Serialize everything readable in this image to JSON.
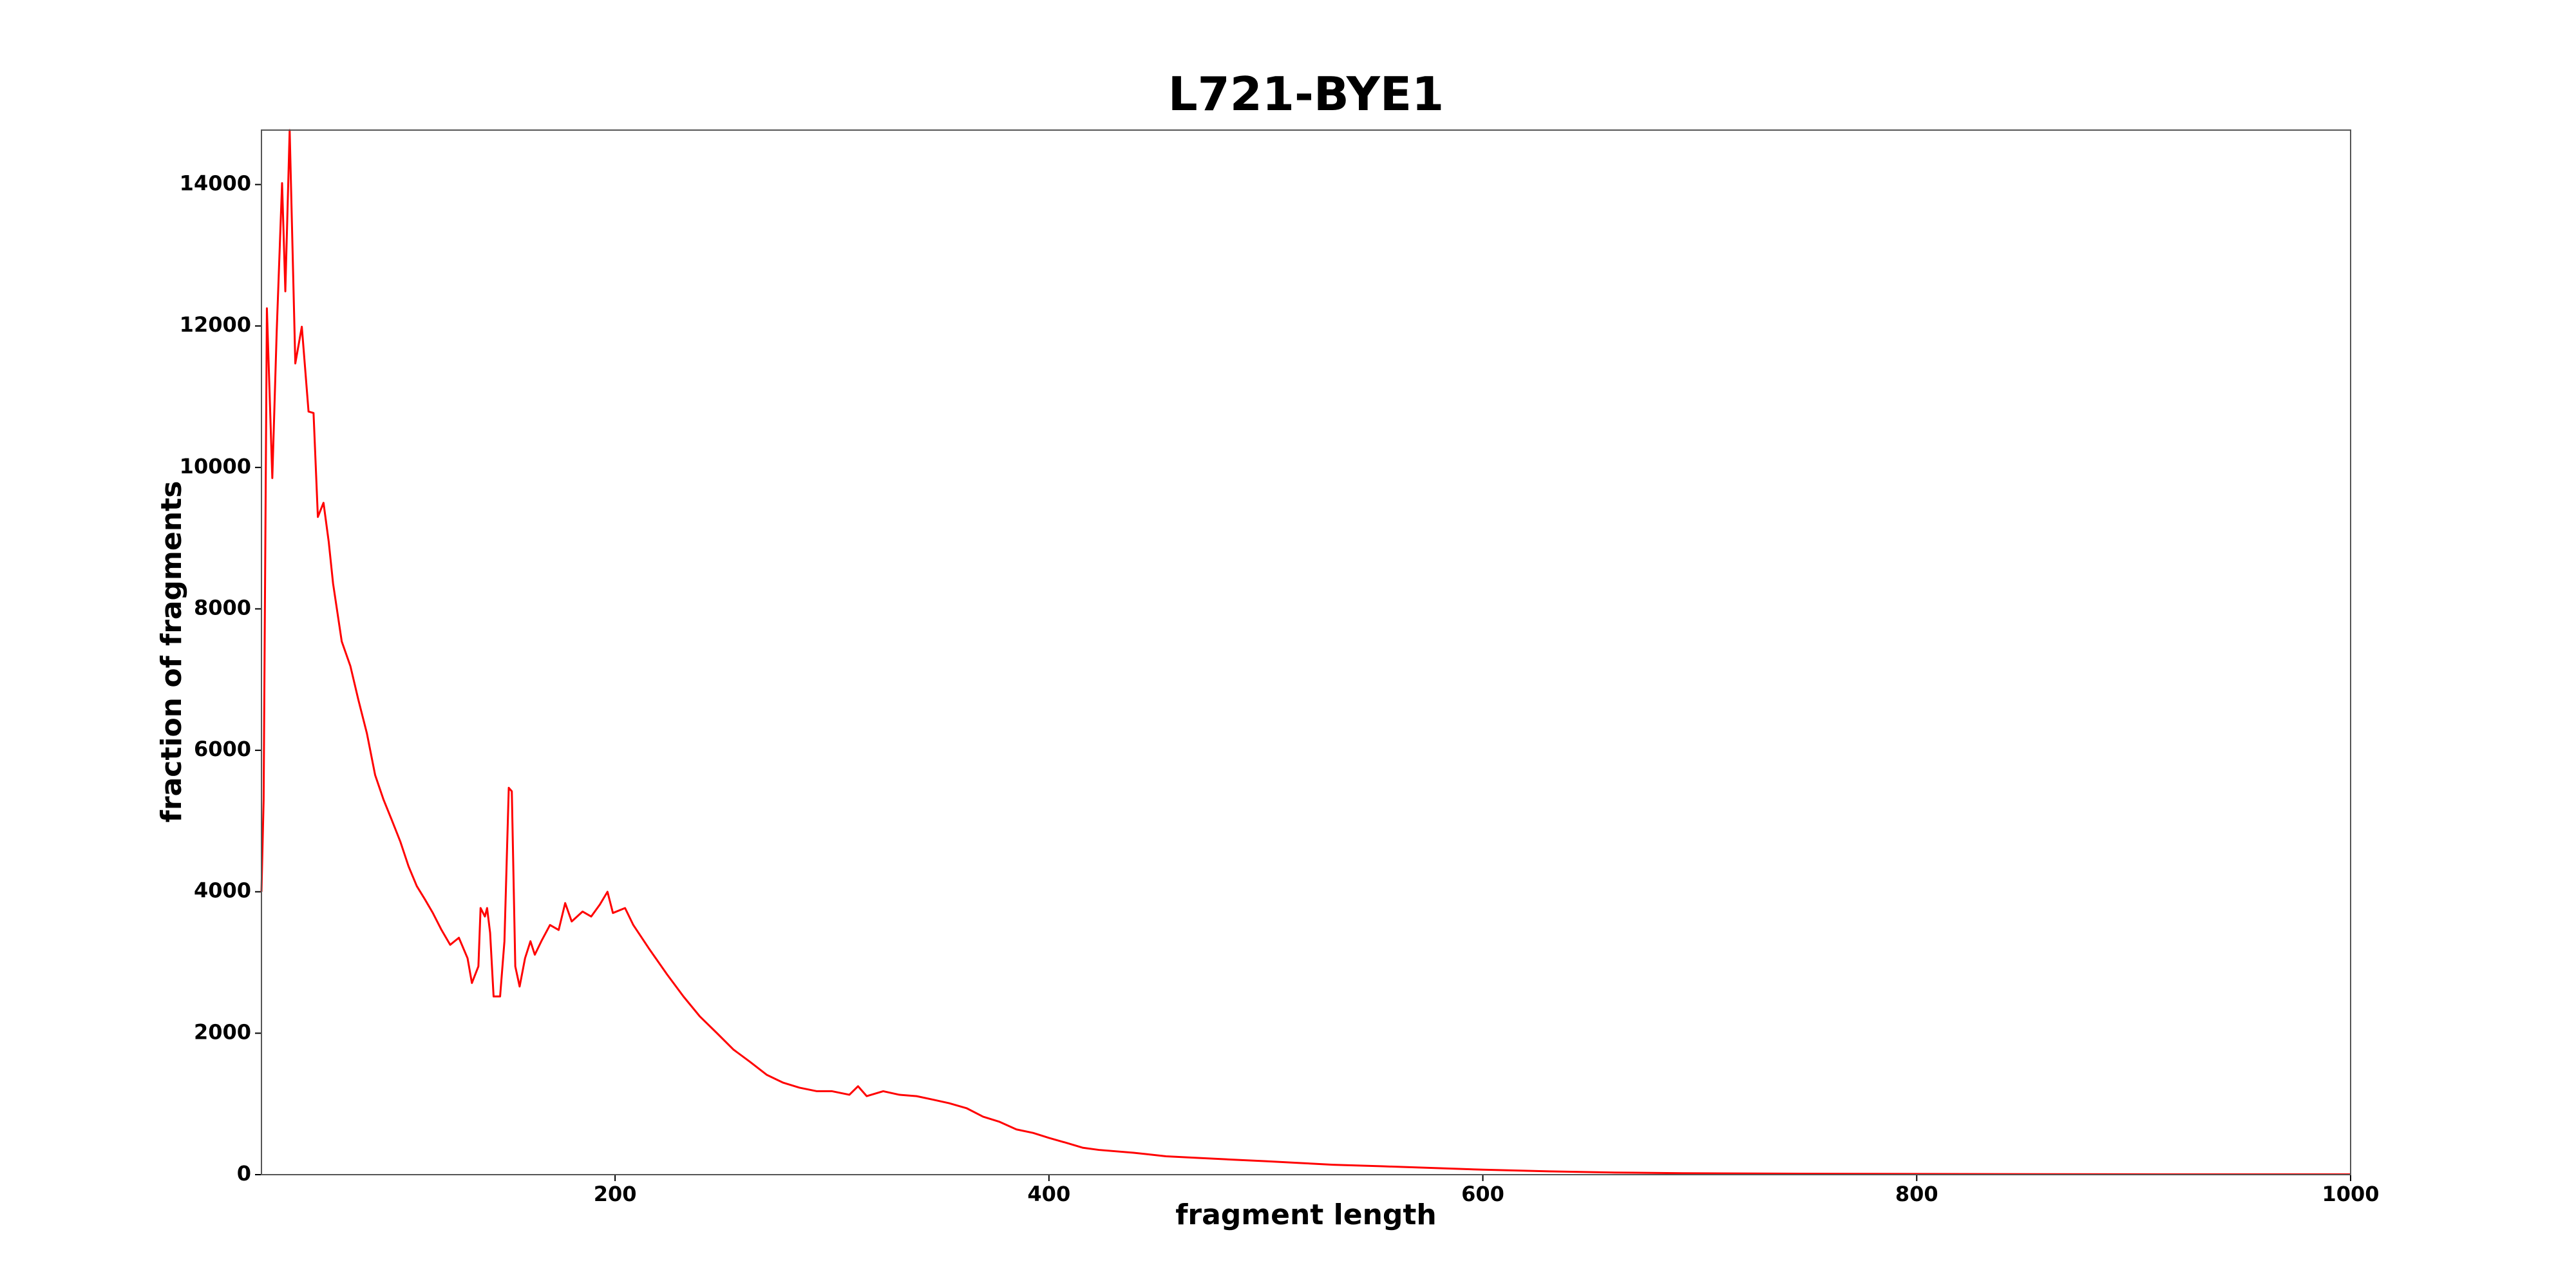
{
  "chart_data": {
    "type": "line",
    "title": "L721-BYE1",
    "x_label": "fragment length",
    "y_label": "fraction of fragments",
    "xlim": [
      37,
      1000
    ],
    "ylim": [
      0,
      14770
    ],
    "xticks": [
      200,
      400,
      600,
      800,
      1000
    ],
    "yticks": [
      0,
      2000,
      4000,
      6000,
      8000,
      10000,
      12000,
      14000
    ],
    "series": [
      {
        "name": "L721-BYE1",
        "color": "#ff0000",
        "x": [
          37,
          38,
          39.5,
          42,
          44,
          46.5,
          48,
          50,
          52.6,
          55.6,
          58.7,
          61,
          63,
          65.6,
          68,
          70,
          74,
          78,
          81.7,
          85.6,
          89.4,
          93.3,
          97,
          101,
          104.8,
          108.6,
          112.4,
          116,
          120,
          124,
          128,
          132,
          134,
          137,
          138,
          140,
          141,
          142.4,
          144,
          147,
          149,
          151,
          152.4,
          154,
          156,
          158.5,
          161,
          163,
          166,
          170,
          174,
          177,
          180,
          185,
          189,
          193,
          196.5,
          199,
          204.6,
          208.4,
          216,
          224,
          231.5,
          239,
          247,
          254.5,
          262,
          270,
          277.5,
          285,
          293,
          300,
          308,
          312,
          316,
          323.6,
          331,
          339,
          346.6,
          354,
          362,
          369.6,
          377,
          385,
          392.7,
          400,
          408,
          415.7,
          423,
          439,
          454,
          469.5,
          485,
          500,
          515.5,
          530.9,
          554,
          577,
          600,
          630.7,
          661,
          692,
          761,
          838,
          914,
          1000
        ],
        "values": [
          4000,
          5300,
          12250,
          9850,
          11900,
          14020,
          12490,
          14770,
          11470,
          11990,
          10790,
          10770,
          9300,
          9500,
          8950,
          8360,
          7540,
          7190,
          6710,
          6240,
          5650,
          5300,
          5020,
          4710,
          4360,
          4080,
          3890,
          3700,
          3460,
          3250,
          3350,
          3060,
          2710,
          2945,
          3770,
          3650,
          3770,
          3420,
          2520,
          2520,
          3300,
          5470,
          5420,
          2945,
          2660,
          3060,
          3300,
          3110,
          3300,
          3530,
          3460,
          3840,
          3580,
          3720,
          3650,
          3820,
          4000,
          3700,
          3770,
          3530,
          3180,
          2830,
          2520,
          2240,
          2000,
          1770,
          1600,
          1410,
          1300,
          1230,
          1180,
          1180,
          1130,
          1250,
          1110,
          1180,
          1130,
          1110,
          1060,
          1010,
          940,
          820,
          750,
          640,
          590,
          520,
          450,
          380,
          350,
          310,
          260,
          236,
          212,
          190,
          165,
          140,
          118,
          94,
          70,
          47,
          30,
          20,
          12,
          8,
          5,
          4
        ]
      }
    ]
  }
}
